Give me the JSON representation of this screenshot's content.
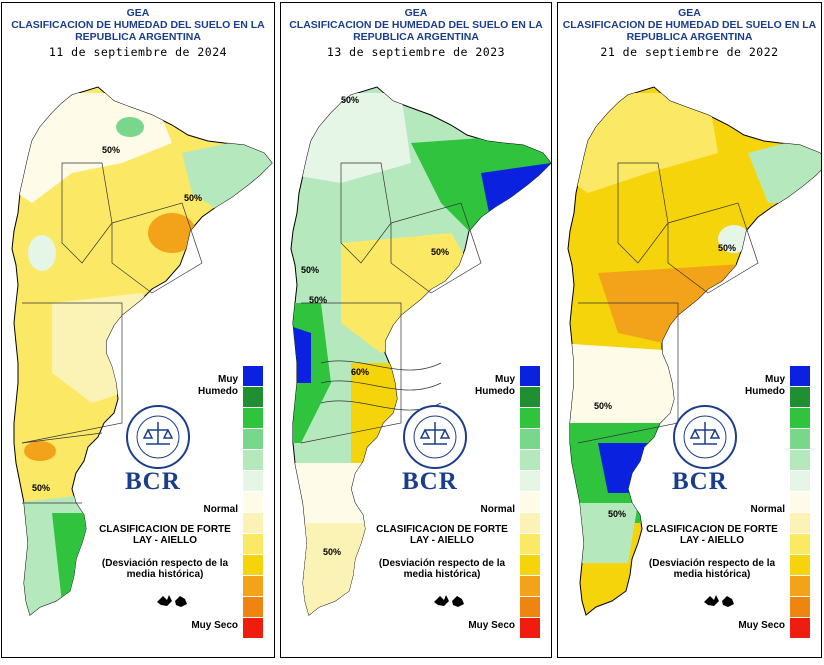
{
  "colors": {
    "muy_humedo": "#0a22e0",
    "humedo_dark": "#1f8f32",
    "humedo_mid": "#2fc33e",
    "humedo_light": "#78d78a",
    "humedo_pale": "#b6e8bd",
    "normal_pale": "#e5f5e6",
    "normal": "#fefbe8",
    "seco_pale": "#fbf3b5",
    "seco_light": "#fbe865",
    "seco_mid": "#f6d40b",
    "seco_orange": "#f3a31a",
    "seco_dark_orange": "#f08411",
    "muy_seco": "#ef1d10",
    "title_blue": "#1a3e8c"
  },
  "legend": {
    "top_label": "Muy Humedo",
    "mid_label": "Normal",
    "bottom_label": "Muy Seco",
    "classification_title": "CLASIFICACION DE FORTE LAY - AIELLO",
    "classification_note": "(Desviación respecto de la media histórica)",
    "swatches": [
      "#0a22e0",
      "#1f8f32",
      "#2fc33e",
      "#78d78a",
      "#b6e8bd",
      "#e5f5e6",
      "#fefbe8",
      "#fbf3b5",
      "#fbe865",
      "#f6d40b",
      "#f3a31a",
      "#f08411",
      "#ef1d10"
    ]
  },
  "logo": {
    "text": "BCR",
    "seal_text": "BOLSA DE COMERCIO DE ROSARIO"
  },
  "panels": [
    {
      "org": "GEA",
      "title": "CLASIFICACION DE HUMEDAD DEL SUELO EN LA REPUBLICA ARGENTINA",
      "date": "11 de septiembre de 2024",
      "contour_labels": [
        "50%",
        "50%",
        "50%"
      ],
      "dominant": "seco_light"
    },
    {
      "org": "GEA",
      "title": "CLASIFICACION DE HUMEDAD DEL SUELO EN LA REPUBLICA ARGENTINA",
      "date": "13 de septiembre de 2023",
      "contour_labels": [
        "50%",
        "50%",
        "50%",
        "60%",
        "50%",
        "50%"
      ],
      "dominant": "humedo_pale"
    },
    {
      "org": "GEA",
      "title": "CLASIFICACION DE HUMEDAD DEL SUELO EN LA REPUBLICA ARGENTINA",
      "date": "21 de septiembre de 2022",
      "contour_labels": [
        "50%",
        "50%",
        "50%"
      ],
      "dominant": "seco_mid"
    }
  ]
}
